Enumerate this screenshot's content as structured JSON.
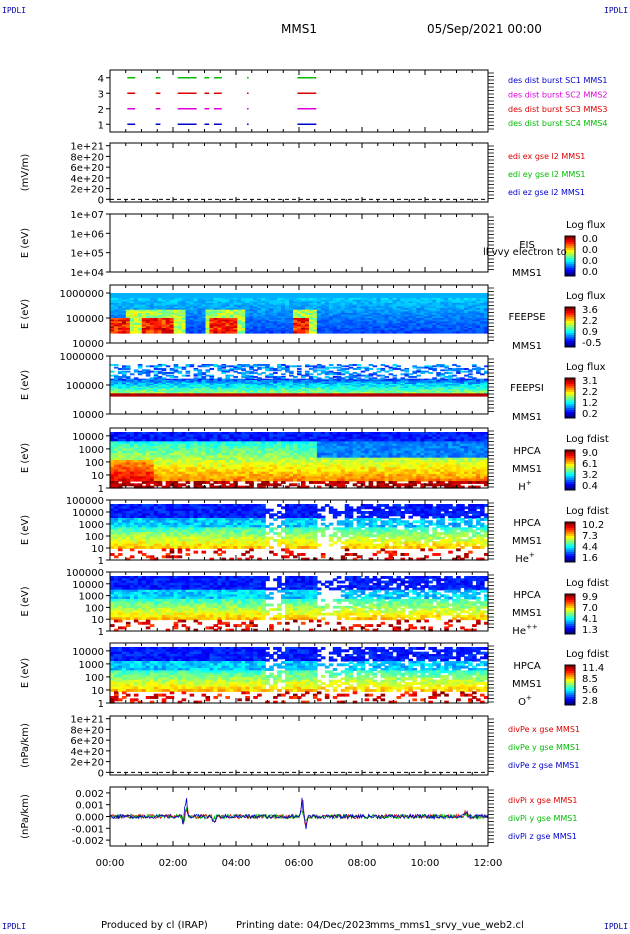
{
  "header": {
    "corner_label": "IPDLI",
    "title": "MMS1",
    "datetime": "05/Sep/2021 00:00"
  },
  "footer": {
    "produced_by": "Produced by cl (IRAP)",
    "printing_date": "Printing date: 04/Dec/2023",
    "filename": "mms_mms1_srvy_vue_web2.cl"
  },
  "chart_data": [
    {
      "type": "line",
      "panel": "burst",
      "y_ticks": [
        "1",
        "2",
        "3",
        "4"
      ],
      "ylim": [
        0.5,
        4.5
      ],
      "x_ticks": [
        "00:00",
        "02:00",
        "04:00",
        "06:00",
        "08:00",
        "10:00",
        "12:00"
      ],
      "xlim_hours": [
        0,
        12
      ],
      "legend": [
        {
          "label": "des dist burst SC1 MMS1",
          "color": "#0000cc"
        },
        {
          "label": "des dist burst SC2 MMS2",
          "color": "#dd00dd"
        },
        {
          "label": "des dist burst SC3 MMS3",
          "color": "#dd0000"
        },
        {
          "label": "des dist burst SC4 MMS4",
          "color": "#00bb00"
        }
      ],
      "series": [
        {
          "name": "des dist burst SC1 MMS1",
          "level": 1,
          "intervals_hours": [
            [
              0.55,
              0.8
            ],
            [
              1.45,
              1.6
            ],
            [
              2.15,
              2.75
            ],
            [
              3.0,
              3.15
            ],
            [
              3.3,
              3.55
            ],
            [
              4.35,
              4.4
            ],
            [
              5.95,
              6.55
            ]
          ]
        },
        {
          "name": "des dist burst SC2 MMS2",
          "level": 2,
          "intervals_hours": [
            [
              0.55,
              0.8
            ],
            [
              1.45,
              1.6
            ],
            [
              2.15,
              2.75
            ],
            [
              3.0,
              3.15
            ],
            [
              3.3,
              3.55
            ],
            [
              4.35,
              4.4
            ],
            [
              5.95,
              6.55
            ]
          ]
        },
        {
          "name": "des dist burst SC3 MMS3",
          "level": 3,
          "intervals_hours": [
            [
              0.55,
              0.8
            ],
            [
              1.45,
              1.6
            ],
            [
              2.15,
              2.75
            ],
            [
              3.0,
              3.15
            ],
            [
              3.3,
              3.55
            ],
            [
              4.35,
              4.4
            ],
            [
              5.95,
              6.55
            ]
          ]
        },
        {
          "name": "des dist burst SC4 MMS4",
          "level": 4,
          "intervals_hours": [
            [
              0.55,
              0.8
            ],
            [
              1.45,
              1.6
            ],
            [
              2.15,
              2.75
            ],
            [
              3.0,
              3.15
            ],
            [
              3.3,
              3.55
            ],
            [
              4.35,
              4.4
            ],
            [
              5.95,
              6.55
            ]
          ]
        }
      ]
    },
    {
      "type": "line",
      "panel": "edi",
      "ylabel": "(mV/m)",
      "y_ticks": [
        "0",
        "2e+20",
        "4e+20",
        "6e+20",
        "8e+20",
        "1e+21"
      ],
      "y_values": [
        0,
        2e+20,
        4e+20,
        6e+20,
        8e+20,
        1e+21
      ],
      "ylim": [
        -5e+19,
        1.05e+21
      ],
      "zero_line_dashed": true,
      "legend": [
        {
          "label": "edi ex gse l2 MMS1",
          "color": "#dd0000"
        },
        {
          "label": "edi ey gse l2 MMS1",
          "color": "#00bb00"
        },
        {
          "label": "edi ez gse l2 MMS1",
          "color": "#0000cc"
        }
      ]
    },
    {
      "type": "heatmap",
      "panel": "eis",
      "ylabel": "E (eV)",
      "y_ticks": [
        "1e+04",
        "1e+05",
        "1e+06",
        "1e+07"
      ],
      "ylim": [
        10000,
        10000000
      ],
      "log_y": true,
      "labels": [
        "EIS",
        "MMS1"
      ],
      "overlay_text": "ll vvy electron to",
      "colorbar": {
        "title": "Log flux",
        "ticks": [
          "0.0",
          "0.0",
          "0.0",
          "0.0"
        ]
      }
    },
    {
      "type": "heatmap",
      "panel": "feeps_electron",
      "ylabel": "E (eV)",
      "y_ticks": [
        "10000",
        "100000",
        "1000000"
      ],
      "ylim": [
        10000,
        1000000
      ],
      "log_y": true,
      "labels": [
        "FEEPSE",
        "MMS1"
      ],
      "colorbar": {
        "title": "Log flux",
        "ticks": [
          "3.6",
          "2.2",
          "0.9",
          "-0.5"
        ]
      }
    },
    {
      "type": "heatmap",
      "panel": "feeps_ion",
      "ylabel": "E (eV)",
      "y_ticks": [
        "10000",
        "100000",
        "1000000"
      ],
      "ylim": [
        10000,
        1000000
      ],
      "log_y": true,
      "labels": [
        "FEEPSI",
        "MMS1"
      ],
      "colorbar": {
        "title": "Log flux",
        "ticks": [
          "3.1",
          "2.2",
          "1.2",
          "0.2"
        ]
      }
    },
    {
      "type": "heatmap",
      "panel": "hpca_h",
      "ylabel": "E (eV)",
      "y_ticks": [
        "1",
        "10",
        "100",
        "1000",
        "10000"
      ],
      "ylim": [
        1,
        40000
      ],
      "log_y": true,
      "labels": [
        "HPCA",
        "MMS1"
      ],
      "species": "H",
      "species_sup": "+",
      "colorbar": {
        "title": "Log fdist",
        "ticks": [
          "9.0",
          "6.1",
          "3.2",
          "0.4"
        ]
      }
    },
    {
      "type": "heatmap",
      "panel": "hpca_he",
      "ylabel": "E (eV)",
      "y_ticks": [
        "1",
        "10",
        "100",
        "1000",
        "10000",
        "100000"
      ],
      "ylim": [
        1,
        100000
      ],
      "log_y": true,
      "labels": [
        "HPCA",
        "MMS1"
      ],
      "species": "He",
      "species_sup": "+",
      "colorbar": {
        "title": "Log fdist",
        "ticks": [
          "10.2",
          "7.3",
          "4.4",
          "1.6"
        ]
      }
    },
    {
      "type": "heatmap",
      "panel": "hpca_hepp",
      "ylabel": "E (eV)",
      "y_ticks": [
        "1",
        "10",
        "100",
        "1000",
        "10000",
        "100000"
      ],
      "ylim": [
        1,
        100000
      ],
      "log_y": true,
      "labels": [
        "HPCA",
        "MMS1"
      ],
      "species": "He",
      "species_sup": "++",
      "colorbar": {
        "title": "Log fdist",
        "ticks": [
          "9.9",
          "7.0",
          "4.1",
          "1.3"
        ]
      }
    },
    {
      "type": "heatmap",
      "panel": "hpca_o",
      "ylabel": "E (eV)",
      "y_ticks": [
        "1",
        "10",
        "100",
        "1000",
        "10000"
      ],
      "ylim": [
        1,
        40000
      ],
      "log_y": true,
      "labels": [
        "HPCA",
        "MMS1"
      ],
      "species": "O",
      "species_sup": "+",
      "colorbar": {
        "title": "Log fdist",
        "ticks": [
          "11.4",
          "8.5",
          "5.6",
          "2.8"
        ]
      }
    },
    {
      "type": "line",
      "panel": "divpe",
      "ylabel": "(nPa/km)",
      "y_ticks": [
        "0",
        "2e+20",
        "4e+20",
        "6e+20",
        "8e+20",
        "1e+21"
      ],
      "y_values": [
        0,
        2e+20,
        4e+20,
        6e+20,
        8e+20,
        1e+21
      ],
      "ylim": [
        -5e+19,
        1.05e+21
      ],
      "zero_line_dashed": true,
      "legend": [
        {
          "label": "divPe x gse MMS1",
          "color": "#dd0000"
        },
        {
          "label": "divPe y gse MMS1",
          "color": "#00bb00"
        },
        {
          "label": "divPe z gse MMS1",
          "color": "#0000cc"
        }
      ]
    },
    {
      "type": "line",
      "panel": "divpi",
      "ylabel": "(nPa/km)",
      "y_ticks": [
        "-0.002",
        "-0.001",
        "0.000",
        "0.001",
        "0.002"
      ],
      "y_values": [
        -0.002,
        -0.001,
        0,
        0.001,
        0.002
      ],
      "ylim": [
        -0.0025,
        0.0025
      ],
      "legend": [
        {
          "label": "divPi x gse MMS1",
          "color": "#dd0000"
        },
        {
          "label": "divPi y gse MMS1",
          "color": "#00bb00"
        },
        {
          "label": "divPi z gse MMS1",
          "color": "#0000cc"
        }
      ],
      "spikes_hours": [
        {
          "t": 2.4,
          "amp": 0.0022
        },
        {
          "t": 2.35,
          "amp": -0.0016
        },
        {
          "t": 6.1,
          "amp": 0.0018
        },
        {
          "t": 6.2,
          "amp": -0.0012
        },
        {
          "t": 3.3,
          "amp": -0.0008
        },
        {
          "t": 11.3,
          "amp": 0.0005
        }
      ]
    }
  ]
}
